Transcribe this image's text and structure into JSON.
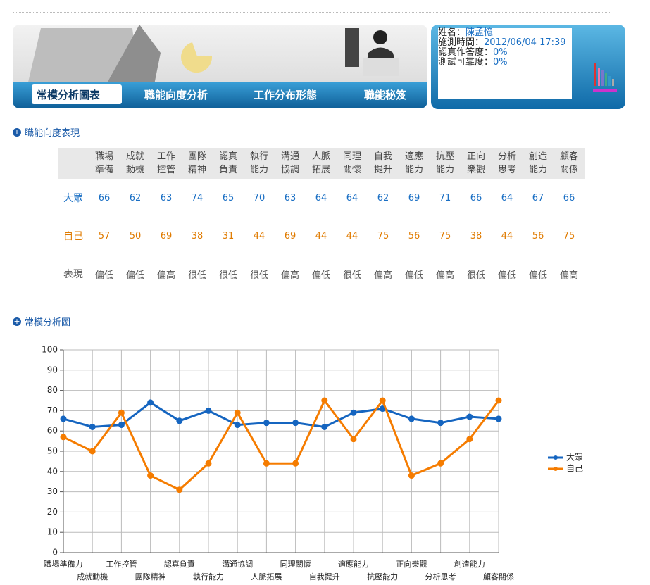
{
  "header": {
    "tabs": [
      "常模分析圖表",
      "職能向度分析",
      "工作分布形態",
      "職能秘笈"
    ],
    "info": [
      {
        "label": "姓名：",
        "value": "陳孟憶"
      },
      {
        "label": "施測時間：",
        "value": "2012/06/04 17:39"
      },
      {
        "label": "認真作答度：",
        "value": "0%"
      },
      {
        "label": "測試可靠度：",
        "value": "0%"
      }
    ]
  },
  "section1": {
    "title": "職能向度表現"
  },
  "table": {
    "header": [
      "職場準備",
      "成就動機",
      "工作控管",
      "團隊精神",
      "認真負責",
      "執行能力",
      "溝通協調",
      "人脈拓展",
      "同理關懷",
      "自我提升",
      "適應能力",
      "抗壓能力",
      "正向樂觀",
      "分析思考",
      "創造能力",
      "顧客關係"
    ],
    "rows": [
      {
        "label": "大眾",
        "cells": [
          66,
          62,
          63,
          74,
          65,
          70,
          63,
          64,
          64,
          62,
          69,
          71,
          66,
          64,
          67,
          66
        ]
      },
      {
        "label": "自己",
        "cells": [
          57,
          50,
          69,
          38,
          31,
          44,
          69,
          44,
          44,
          75,
          56,
          75,
          38,
          44,
          56,
          75
        ]
      },
      {
        "label": "表現",
        "cells": [
          "偏低",
          "偏低",
          "偏高",
          "很低",
          "很低",
          "很低",
          "偏高",
          "偏低",
          "很低",
          "偏高",
          "偏低",
          "偏高",
          "很低",
          "偏低",
          "偏低",
          "偏高"
        ]
      }
    ]
  },
  "section2": {
    "title": "常模分析圖"
  },
  "chart_data": {
    "type": "line",
    "categories": [
      "職場準備力",
      "成就動機",
      "工作控管",
      "團隊精神",
      "認真負責",
      "執行能力",
      "溝通協調",
      "人脈拓展",
      "同理關懷",
      "自我提升",
      "適應能力",
      "抗壓能力",
      "正向樂觀",
      "分析思考",
      "創造能力",
      "顧客關係"
    ],
    "series": [
      {
        "name": "大眾",
        "color": "#1565c0",
        "values": [
          66,
          62,
          63,
          74,
          65,
          70,
          63,
          64,
          64,
          62,
          69,
          71,
          66,
          64,
          67,
          66
        ]
      },
      {
        "name": "自己",
        "color": "#f57c00",
        "values": [
          57,
          50,
          69,
          38,
          31,
          44,
          69,
          44,
          44,
          75,
          56,
          75,
          38,
          44,
          56,
          75
        ]
      }
    ],
    "ylim": [
      0,
      100
    ],
    "yticks": [
      0,
      10,
      20,
      30,
      40,
      50,
      60,
      70,
      80,
      90,
      100
    ],
    "grid": true,
    "legend": "right"
  }
}
